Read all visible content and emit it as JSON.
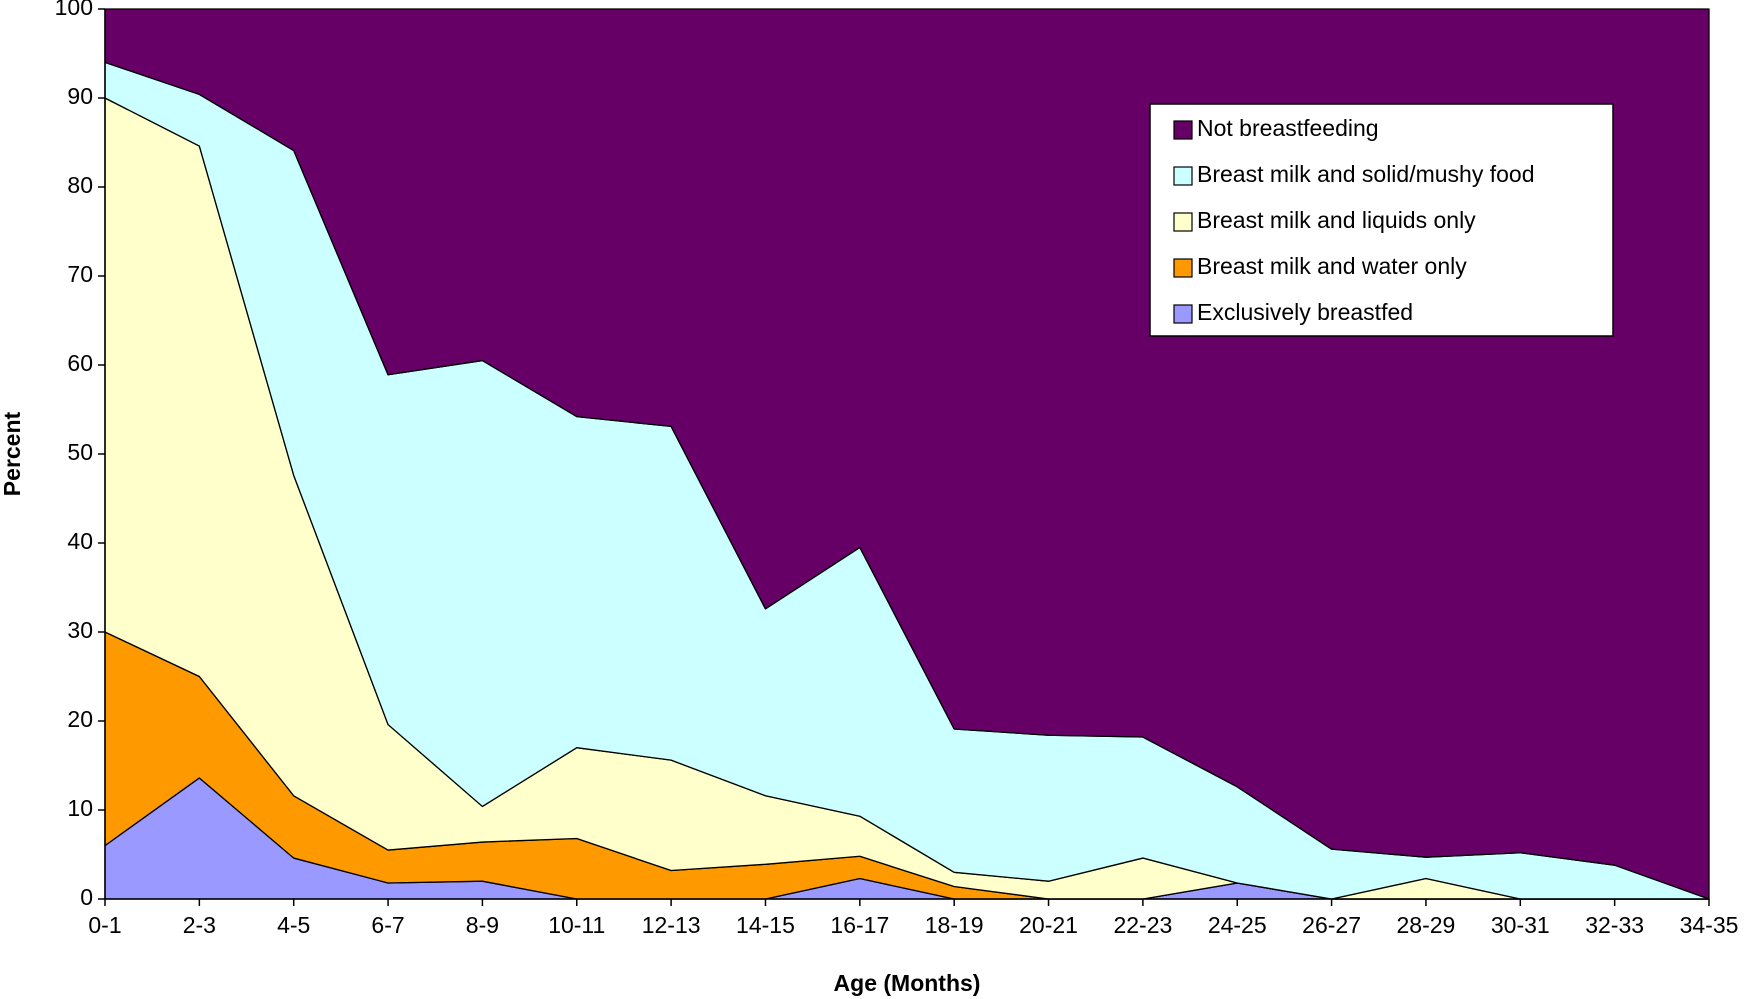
{
  "chart_data": {
    "type": "stacked-area",
    "x_label": "Age (Months)",
    "y_label": "Percent",
    "categories": [
      "0-1",
      "2-3",
      "4-5",
      "6-7",
      "8-9",
      "10-11",
      "12-13",
      "14-15",
      "16-17",
      "18-19",
      "20-21",
      "22-23",
      "24-25",
      "26-27",
      "28-29",
      "30-31",
      "32-33",
      "34-35"
    ],
    "series": [
      {
        "name": "Exclusively breastfed",
        "color": "#9999ff",
        "values": [
          6,
          13.6,
          4.6,
          1.8,
          2,
          0,
          0,
          0,
          2.3,
          0,
          0,
          0,
          1.8,
          0,
          0,
          0,
          0,
          0
        ]
      },
      {
        "name": "Breast milk and water only",
        "color": "#ff9900",
        "values": [
          24,
          11.4,
          7,
          3.7,
          4.4,
          6.8,
          3.2,
          3.9,
          2.5,
          1.4,
          0,
          0,
          0,
          0,
          0,
          0,
          0,
          0
        ]
      },
      {
        "name": "Breast milk and liquids only",
        "color": "#ffffcc",
        "values": [
          60,
          59.6,
          36,
          14.1,
          4,
          10.2,
          12.4,
          7.7,
          4.5,
          1.6,
          2,
          4.6,
          0,
          0,
          2.3,
          0,
          0,
          0
        ]
      },
      {
        "name": "Breast milk and solid/mushy food",
        "color": "#ccffff",
        "values": [
          4,
          5.8,
          36.5,
          39.3,
          50.1,
          37.2,
          37.5,
          21,
          30.2,
          16.1,
          16.4,
          13.6,
          10.8,
          5.6,
          2.4,
          5.2,
          3.8,
          0
        ]
      },
      {
        "name": "Not breastfeeding",
        "color": "#660066",
        "values": [
          6,
          9.6,
          15.9,
          41.1,
          39.5,
          45.8,
          46.9,
          67.4,
          60.5,
          80.9,
          81.6,
          81.8,
          87.4,
          94.4,
          95.3,
          94.8,
          96.2,
          100
        ]
      }
    ],
    "ylim": [
      0,
      100
    ],
    "yticks": [
      0,
      10,
      20,
      30,
      40,
      50,
      60,
      70,
      80,
      90,
      100
    ],
    "legend": "upper-right"
  }
}
